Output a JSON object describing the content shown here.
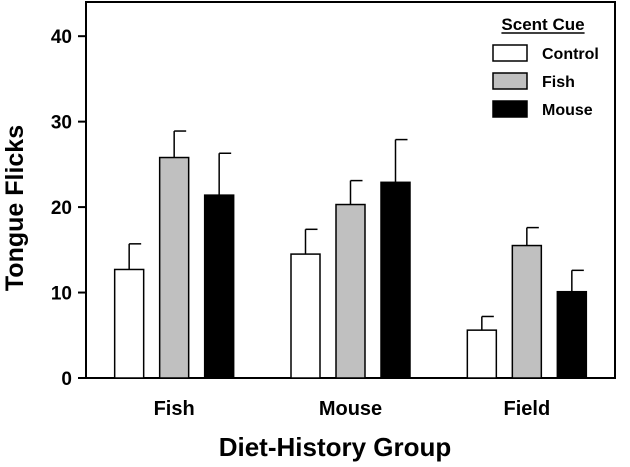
{
  "chart_data": {
    "type": "bar",
    "title": "",
    "xlabel": "Diet-History Group",
    "ylabel": "Tongue Flicks",
    "ylim": [
      0,
      44
    ],
    "yticks": [
      0,
      10,
      20,
      30,
      40
    ],
    "categories": [
      "Fish",
      "Mouse",
      "Field"
    ],
    "legend": {
      "title": "Scent Cue",
      "position": "top-right"
    },
    "series": [
      {
        "name": "Control",
        "color": "#ffffff",
        "values": [
          12.7,
          14.5,
          5.6
        ],
        "errors": [
          3.0,
          2.9,
          1.6
        ]
      },
      {
        "name": "Fish",
        "color": "#c0c0c0",
        "values": [
          25.8,
          20.3,
          15.5
        ],
        "errors": [
          3.1,
          2.8,
          2.1
        ]
      },
      {
        "name": "Mouse",
        "color": "#000000",
        "values": [
          21.4,
          22.9,
          10.1
        ],
        "errors": [
          4.9,
          5.0,
          2.5
        ]
      }
    ]
  }
}
